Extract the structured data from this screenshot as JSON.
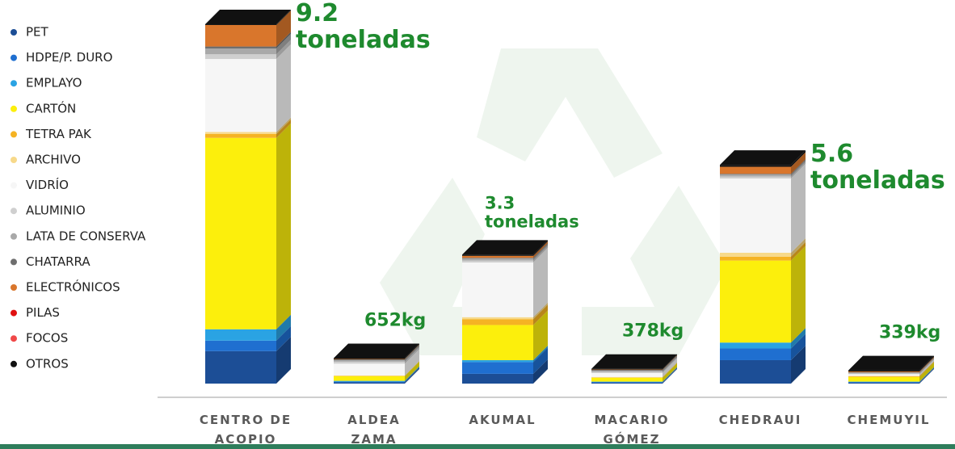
{
  "chart_data": {
    "type": "bar3d_stacked",
    "categories": [
      "CENTRO DE ACOPIO",
      "ALDEA ZAMA",
      "AKUMAL",
      "MACARIO GÓMEZ",
      "CHEDRAUI",
      "CHEMUYIL"
    ],
    "totals": [
      9.2,
      0.652,
      3.3,
      0.378,
      5.6,
      0.339
    ],
    "value_labels": [
      "9.2 toneladas",
      "652kg",
      "3.3 toneladas",
      "378kg",
      "5.6 toneladas",
      "339kg"
    ],
    "series": [
      {
        "name": "PET",
        "color": "#1c4e96",
        "values": [
          0.83,
          0.03,
          0.25,
          0.02,
          0.6,
          0.02
        ]
      },
      {
        "name": "HDPE/P. DURO",
        "color": "#1f6fd0",
        "values": [
          0.27,
          0.02,
          0.3,
          0.02,
          0.3,
          0.02
        ]
      },
      {
        "name": "EMPLAYO",
        "color": "#2aa3e3",
        "values": [
          0.29,
          0.02,
          0.05,
          0.01,
          0.15,
          0.01
        ]
      },
      {
        "name": "CARTÓN",
        "color": "#fcef0c",
        "values": [
          4.9,
          0.12,
          0.9,
          0.1,
          2.1,
          0.12
        ]
      },
      {
        "name": "TETRA PAK",
        "color": "#f5b323",
        "values": [
          0.1,
          0.01,
          0.15,
          0.01,
          0.1,
          0.02
        ]
      },
      {
        "name": "ARCHIVO",
        "color": "#f7d98a",
        "values": [
          0.05,
          0.01,
          0.05,
          0.01,
          0.1,
          0.01
        ]
      },
      {
        "name": "VIDRÍO",
        "color": "#f6f6f6",
        "values": [
          1.87,
          0.3,
          1.4,
          0.1,
          1.9,
          0.04
        ]
      },
      {
        "name": "ALUMINIO",
        "color": "#cfcfcf",
        "values": [
          0.12,
          0.05,
          0.05,
          0.03,
          0.05,
          0.02
        ]
      },
      {
        "name": "LATA DE CONSERVA",
        "color": "#a9a9a9",
        "values": [
          0.15,
          0.04,
          0.05,
          0.03,
          0.05,
          0.02
        ]
      },
      {
        "name": "CHATARRA",
        "color": "#6e6e6e",
        "values": [
          0.05,
          0.02,
          0.02,
          0.02,
          0.02,
          0.01
        ]
      },
      {
        "name": "ELECTRÓNICOS",
        "color": "#d9762c",
        "values": [
          0.55,
          0.01,
          0.05,
          0.01,
          0.18,
          0.02
        ]
      },
      {
        "name": "PILAS",
        "color": "#e01010",
        "values": [
          0,
          0,
          0,
          0,
          0,
          0
        ]
      },
      {
        "name": "FOCOS",
        "color": "#f04848",
        "values": [
          0,
          0,
          0,
          0,
          0,
          0
        ]
      },
      {
        "name": "OTROS",
        "color": "#111111",
        "values": [
          0.02,
          0.022,
          0.03,
          0.018,
          0.05,
          0.029
        ]
      }
    ]
  }
}
